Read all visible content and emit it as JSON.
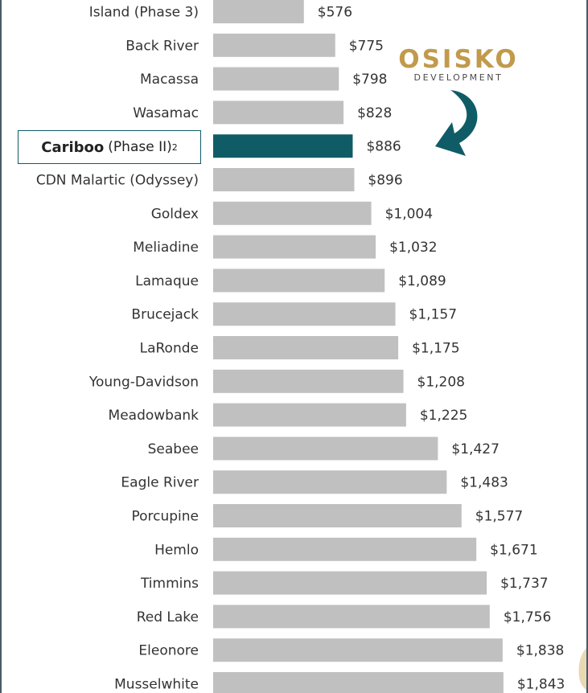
{
  "chart_data": {
    "type": "bar",
    "orientation": "horizontal",
    "title": "",
    "xlabel": "",
    "ylabel": "",
    "value_prefix": "$",
    "xlim": [
      0,
      2000
    ],
    "grid": false,
    "legend": "none",
    "highlight_index": 4,
    "colors": {
      "bar": "#c0c0c0",
      "highlight": "#0f5c66"
    },
    "categories": [
      "Island (Phase 3)",
      "Back River",
      "Macassa",
      "Wasamac",
      "Cariboo (Phase II)",
      "CDN Malartic (Odyssey)",
      "Goldex",
      "Meliadine",
      "Lamaque",
      "Brucejack",
      "LaRonde",
      "Young-Davidson",
      "Meadowbank",
      "Seabee",
      "Eagle River",
      "Porcupine",
      "Hemlo",
      "Timmins",
      "Red Lake",
      "Eleonore",
      "Musselwhite"
    ],
    "values": [
      576,
      775,
      798,
      828,
      886,
      896,
      1004,
      1032,
      1089,
      1157,
      1175,
      1208,
      1225,
      1427,
      1483,
      1577,
      1671,
      1737,
      1756,
      1838,
      1843
    ],
    "value_labels": [
      "$576",
      "$775",
      "$798",
      "$828",
      "$886",
      "$896",
      "$1,004",
      "$1,032",
      "$1,089",
      "$1,157",
      "$1,175",
      "$1,208",
      "$1,225",
      "$1,427",
      "$1,483",
      "$1,577",
      "$1,671",
      "$1,737",
      "$1,756",
      "$1,838",
      "$1,843"
    ]
  },
  "highlight_label": {
    "bold": "Cariboo",
    "normal": "(Phase II)",
    "superscript": "2"
  },
  "logo": {
    "name": "OSISKO",
    "sub": "DEVELOPMENT",
    "color": "#c19a4c"
  }
}
